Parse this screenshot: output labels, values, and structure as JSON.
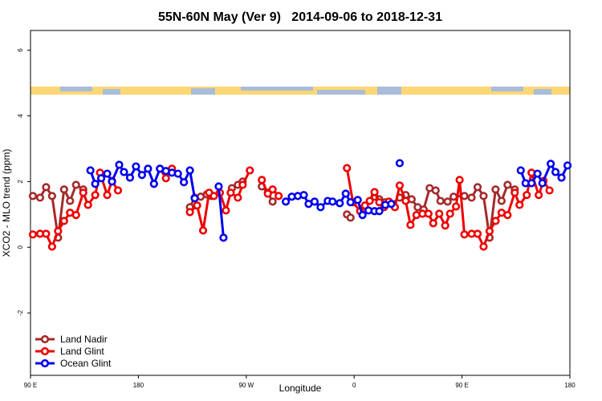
{
  "chart_data": {
    "type": "line",
    "title": "55N-60N May (Ver 9)   2014-09-06 to 2018-12-31",
    "x_label": "Longitude",
    "y_label": "XCO2 - MLO trend (ppm)",
    "xlim": [
      90,
      540
    ],
    "ylim": [
      -3.9,
      6.6
    ],
    "xticks": [
      {
        "value": 90,
        "label": "90 E"
      },
      180,
      {
        "value": 270,
        "label": "90 W"
      },
      {
        "value": 360,
        "label": "0"
      },
      {
        "value": 450,
        "label": "90 E"
      },
      {
        "value": 540,
        "label": "180"
      }
    ],
    "yticks": [
      -2,
      0,
      2,
      4,
      6
    ],
    "legend": "bottomleft",
    "series": [
      {
        "name": "Land Nadir",
        "color": "#a52a2a",
        "x": [
          92,
          98,
          103,
          108,
          113,
          118,
          123,
          128,
          134,
          null,
          223,
          227,
          232,
          237,
          241,
          null,
          258,
          263,
          267,
          null,
          283,
          288,
          292,
          null,
          354,
          357,
          null,
          377,
          381,
          386,
          391,
          398,
          403,
          408,
          413,
          418,
          423,
          428,
          432,
          438,
          443,
          452,
          458,
          463,
          468,
          473,
          478,
          483,
          488,
          494
        ],
        "values": [
          1.56,
          1.51,
          1.83,
          1.56,
          0.29,
          1.76,
          1.41,
          1.9,
          1.76,
          null,
          1.22,
          1.51,
          1.54,
          1.61,
          1.56,
          null,
          1.8,
          1.9,
          2.0,
          null,
          1.85,
          1.66,
          1.39,
          null,
          1.0,
          0.9,
          null,
          1.54,
          1.46,
          1.37,
          1.32,
          1.51,
          1.59,
          1.46,
          1.22,
          1.15,
          1.8,
          1.73,
          1.41,
          1.39,
          1.54,
          1.56,
          1.51,
          1.83,
          1.56,
          0.29,
          1.76,
          1.41,
          1.9,
          1.76
        ]
      },
      {
        "name": "Land Glint",
        "color": "#ee0000",
        "x": [
          92,
          98,
          103,
          108,
          113,
          118,
          123,
          128,
          134,
          138,
          144,
          148,
          154,
          158,
          163,
          null,
          198,
          203,
          208,
          null,
          223,
          229,
          234,
          239,
          243,
          248,
          253,
          257,
          263,
          267,
          273,
          null,
          283,
          288,
          292,
          297,
          null,
          354,
          359,
          365,
          369,
          373,
          377,
          381,
          385,
          389,
          394,
          398,
          403,
          407,
          412,
          417,
          422,
          426,
          431,
          436,
          440,
          445,
          448,
          452,
          458,
          463,
          468,
          473,
          478,
          483,
          488,
          494,
          498,
          504,
          508,
          514,
          518,
          523
        ],
        "values": [
          0.39,
          0.41,
          0.41,
          0.02,
          0.49,
          0.8,
          1.05,
          0.98,
          1.66,
          1.29,
          1.59,
          2.27,
          1.59,
          2.02,
          1.73,
          null,
          2.39,
          2.1,
          2.39,
          null,
          1.07,
          1.27,
          0.51,
          1.66,
          1.56,
          1.66,
          1.12,
          1.66,
          1.51,
          1.9,
          2.34,
          null,
          2.05,
          1.63,
          1.76,
          1.56,
          null,
          2.41,
          1.37,
          1.1,
          1.27,
          1.41,
          1.68,
          1.37,
          1.22,
          1.39,
          1.22,
          1.88,
          1.41,
          0.68,
          0.98,
          1.02,
          1.02,
          0.73,
          1.02,
          0.66,
          1.02,
          1.24,
          2.05,
          0.39,
          0.41,
          0.41,
          0.02,
          0.49,
          0.8,
          1.05,
          0.98,
          1.66,
          1.29,
          1.59,
          2.27,
          1.59,
          2.02,
          1.73
        ]
      },
      {
        "name": "Ocean Glint",
        "color": "#0000ee",
        "x": [
          140,
          144,
          149,
          154,
          158,
          164,
          168,
          173,
          178,
          183,
          188,
          193,
          198,
          203,
          208,
          213,
          218,
          223,
          227,
          null,
          247,
          251,
          null,
          303,
          308,
          313,
          318,
          322,
          327,
          332,
          338,
          342,
          348,
          353,
          357,
          363,
          367,
          372,
          377,
          381,
          386,
          391,
          null,
          398,
          null,
          499,
          503,
          508,
          513,
          517,
          524,
          528,
          533,
          538
        ],
        "values": [
          2.34,
          1.93,
          2.1,
          2.24,
          2.0,
          2.51,
          2.29,
          2.12,
          2.46,
          2.2,
          2.39,
          1.93,
          2.39,
          2.32,
          2.27,
          2.24,
          1.98,
          2.34,
          1.49,
          null,
          1.85,
          0.29,
          null,
          1.39,
          1.54,
          1.56,
          1.59,
          1.32,
          1.39,
          1.22,
          1.41,
          1.39,
          1.34,
          1.63,
          1.37,
          1.44,
          0.98,
          1.12,
          1.1,
          1.1,
          1.29,
          1.32,
          null,
          2.56,
          null,
          2.34,
          1.95,
          1.95,
          2.24,
          1.95,
          2.54,
          2.29,
          2.12,
          2.49
        ]
      }
    ]
  }
}
